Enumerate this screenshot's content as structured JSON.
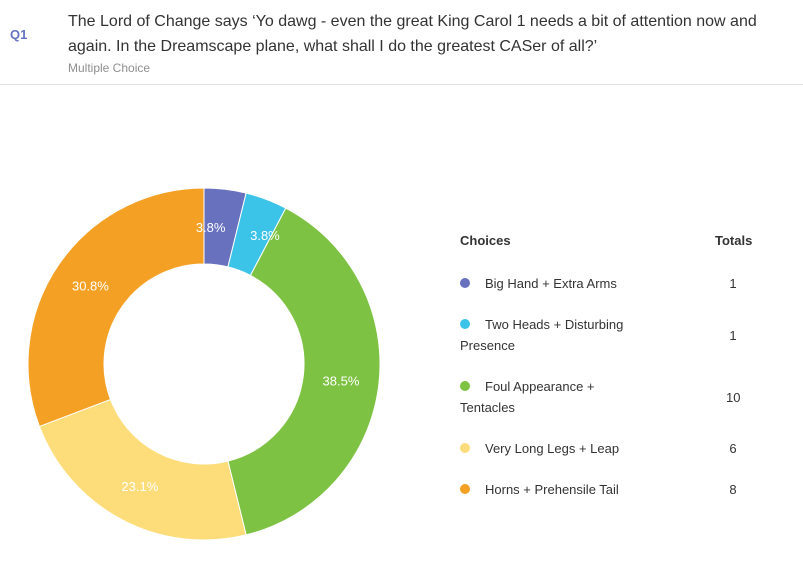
{
  "question": {
    "number": "Q1",
    "text": "The Lord of Change says ‘Yo dawg - even the great King Carol 1 needs a bit of attention now and again. In the Dreamscape plane, what shall I do the greatest CASer of all?’",
    "type": "Multiple Choice"
  },
  "legend": {
    "choices_header": "Choices",
    "totals_header": "Totals"
  },
  "chart_data": {
    "type": "pie",
    "donut": true,
    "categories": [
      "Big Hand + Extra Arms",
      "Two Heads + Disturbing Presence",
      "Foul Appearance + Tentacles",
      "Very Long Legs + Leap",
      "Horns + Prehensile Tail"
    ],
    "values": [
      1,
      1,
      10,
      6,
      8
    ],
    "percent_labels": [
      "3.8%",
      "3.8%",
      "38.5%",
      "23.1%",
      "30.8%"
    ],
    "colors": [
      "#6771bd",
      "#3cc3e8",
      "#7dc242",
      "#fddc7a",
      "#f4a024"
    ]
  }
}
